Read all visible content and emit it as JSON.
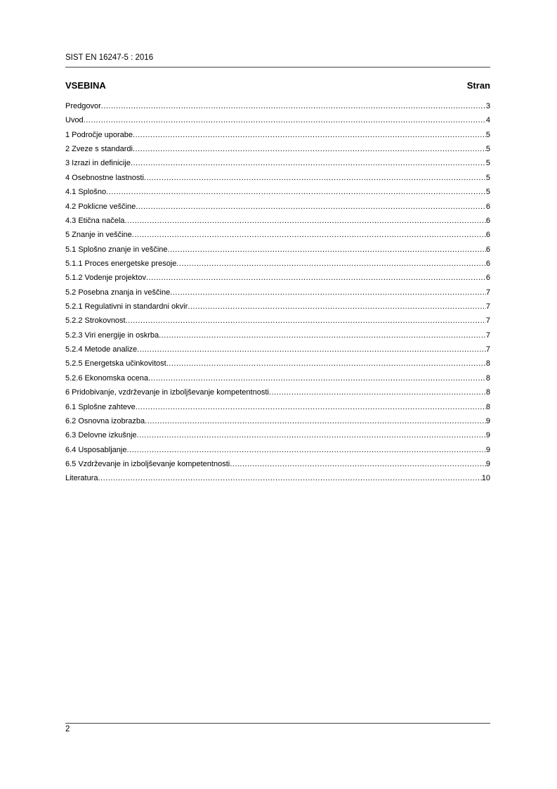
{
  "header": {
    "document_id": "SIST EN 16247-5 : 2016"
  },
  "toc": {
    "title": "VSEBINA",
    "page_column_label": "Stran",
    "entries": [
      {
        "label": "Predgovor",
        "page": "3"
      },
      {
        "label": "Uvod",
        "page": "4"
      },
      {
        "label": "1  Področje uporabe",
        "page": "5"
      },
      {
        "label": "2  Zveze s standardi",
        "page": "5"
      },
      {
        "label": "3  Izrazi in definicije",
        "page": "5"
      },
      {
        "label": "4  Osebnostne lastnosti",
        "page": "5"
      },
      {
        "label": "4.1  Splošno",
        "page": "5"
      },
      {
        "label": "4.2  Poklicne veščine",
        "page": "6"
      },
      {
        "label": "4.3  Etična načela",
        "page": "6"
      },
      {
        "label": "5  Znanje in veščine",
        "page": "6"
      },
      {
        "label": "5.1  Splošno znanje in veščine",
        "page": "6"
      },
      {
        "label": "5.1.1  Proces energetske presoje",
        "page": "6"
      },
      {
        "label": "5.1.2  Vodenje projektov",
        "page": "6"
      },
      {
        "label": "5.2  Posebna znanja in veščine",
        "page": "7"
      },
      {
        "label": "5.2.1  Regulativni in standardni okvir",
        "page": "7"
      },
      {
        "label": "5.2.2  Strokovnost",
        "page": "7"
      },
      {
        "label": "5.2.3  Viri energije in oskrba",
        "page": "7"
      },
      {
        "label": "5.2.4 Metode analize",
        "page": "7"
      },
      {
        "label": "5.2.5  Energetska učinkovitost",
        "page": "8"
      },
      {
        "label": "5.2.6 Ekonomska ocena",
        "page": "8"
      },
      {
        "label": "6  Pridobivanje, vzdrževanje in izboljševanje kompetentnosti",
        "page": "8"
      },
      {
        "label": "6.1  Splošne zahteve",
        "page": "8"
      },
      {
        "label": "6.2  Osnovna izobrazba",
        "page": "9"
      },
      {
        "label": "6.3  Delovne izkušnje",
        "page": "9"
      },
      {
        "label": "6.4  Usposabljanje",
        "page": "9"
      },
      {
        "label": "6.5  Vzdrževanje in izboljševanje kompetentnosti",
        "page": "9"
      },
      {
        "label": "Literatura",
        "page": "10"
      }
    ]
  },
  "footer": {
    "page_number": "2"
  }
}
